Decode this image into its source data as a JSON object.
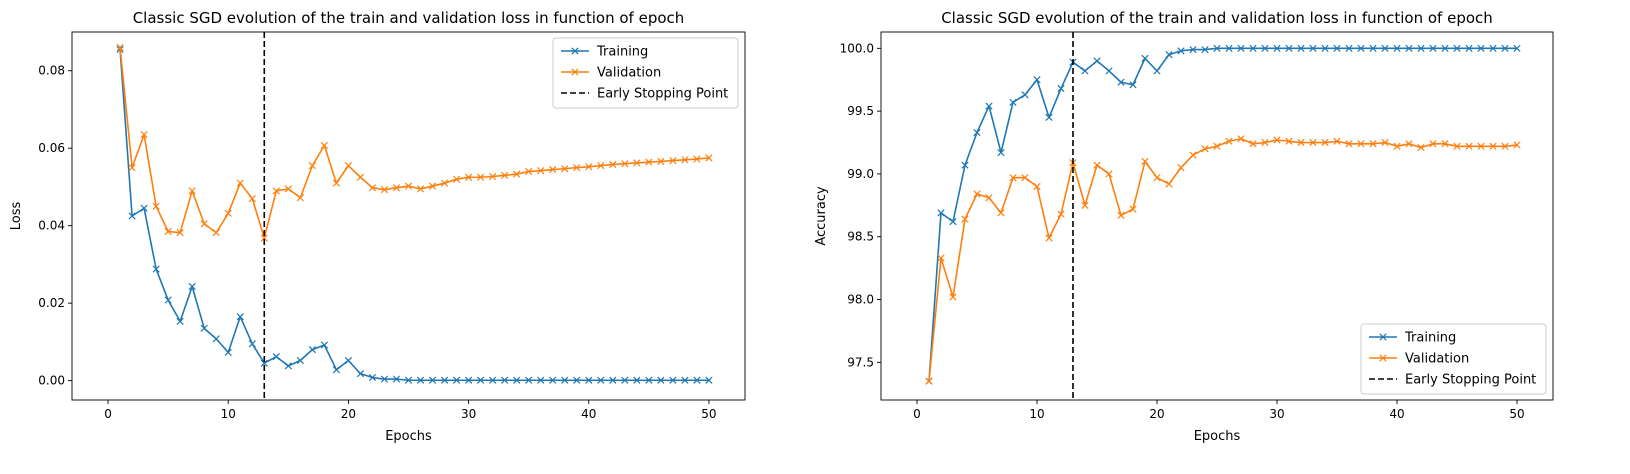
{
  "chart_data": [
    {
      "type": "line",
      "title": "Classic SGD evolution of the train and validation loss in function of epoch",
      "xlabel": "Epochs",
      "ylabel": "Loss",
      "xlim": [
        -3.0,
        53.0
      ],
      "ylim": [
        -0.005,
        0.09
      ],
      "xticks": [
        0,
        10,
        20,
        30,
        40,
        50
      ],
      "yticks": [
        0.0,
        0.02,
        0.04,
        0.06,
        0.08
      ],
      "ytick_labels": [
        "0.00",
        "0.02",
        "0.04",
        "0.06",
        "0.08"
      ],
      "legend_position": "top-right",
      "grid": false,
      "x": [
        1,
        2,
        3,
        4,
        5,
        6,
        7,
        8,
        9,
        10,
        11,
        12,
        13,
        14,
        15,
        16,
        17,
        18,
        19,
        20,
        21,
        22,
        23,
        24,
        25,
        26,
        27,
        28,
        29,
        30,
        31,
        32,
        33,
        34,
        35,
        36,
        37,
        38,
        39,
        40,
        41,
        42,
        43,
        44,
        45,
        46,
        47,
        48,
        49,
        50
      ],
      "series": [
        {
          "name": "Training",
          "color": "#1f77b4",
          "marker": "x",
          "values": [
            0.0855,
            0.0425,
            0.0445,
            0.0288,
            0.0208,
            0.0153,
            0.0243,
            0.0135,
            0.0108,
            0.0073,
            0.0165,
            0.0095,
            0.0045,
            0.0062,
            0.0038,
            0.0052,
            0.008,
            0.0092,
            0.0028,
            0.0052,
            0.0018,
            0.0008,
            0.0004,
            0.0004,
            0.0001,
            0.0001,
            0.0001,
            0.0001,
            0.0001,
            0.0001,
            0.0001,
            0.0001,
            0.0001,
            0.0001,
            0.0001,
            0.0001,
            0.0001,
            0.0001,
            0.0001,
            0.0001,
            0.0001,
            0.0001,
            0.0001,
            0.0001,
            0.0001,
            0.0001,
            0.0001,
            0.0001,
            0.0001,
            0.0001
          ]
        },
        {
          "name": "Validation",
          "color": "#ff7f0e",
          "marker": "x",
          "values": [
            0.086,
            0.055,
            0.0635,
            0.045,
            0.0385,
            0.0382,
            0.049,
            0.0405,
            0.0382,
            0.0432,
            0.051,
            0.047,
            0.0368,
            0.049,
            0.0495,
            0.0472,
            0.0555,
            0.0607,
            0.051,
            0.0555,
            0.0525,
            0.0498,
            0.0493,
            0.0498,
            0.0502,
            0.0495,
            0.0502,
            0.051,
            0.052,
            0.0525,
            0.0525,
            0.0527,
            0.053,
            0.0533,
            0.054,
            0.0542,
            0.0545,
            0.0547,
            0.055,
            0.0552,
            0.0555,
            0.0558,
            0.056,
            0.0562,
            0.0564,
            0.0566,
            0.0568,
            0.057,
            0.0572,
            0.0575
          ]
        }
      ],
      "vline": {
        "name": "Early Stopping Point",
        "x": 13,
        "color": "#000000"
      }
    },
    {
      "type": "line",
      "title": "Classic SGD evolution of the train and validation loss in function of epoch",
      "xlabel": "Epochs",
      "ylabel": "Accuracy",
      "xlim": [
        -3.0,
        53.0
      ],
      "ylim": [
        97.2,
        100.13
      ],
      "xticks": [
        0,
        10,
        20,
        30,
        40,
        50
      ],
      "yticks": [
        97.5,
        98.0,
        98.5,
        99.0,
        99.5,
        100.0
      ],
      "ytick_labels": [
        "97.5",
        "98.0",
        "98.5",
        "99.0",
        "99.5",
        "100.0"
      ],
      "legend_position": "bottom-right",
      "grid": false,
      "x": [
        1,
        2,
        3,
        4,
        5,
        6,
        7,
        8,
        9,
        10,
        11,
        12,
        13,
        14,
        15,
        16,
        17,
        18,
        19,
        20,
        21,
        22,
        23,
        24,
        25,
        26,
        27,
        28,
        29,
        30,
        31,
        32,
        33,
        34,
        35,
        36,
        37,
        38,
        39,
        40,
        41,
        42,
        43,
        44,
        45,
        46,
        47,
        48,
        49,
        50
      ],
      "series": [
        {
          "name": "Training",
          "color": "#1f77b4",
          "marker": "x",
          "values": [
            97.35,
            98.69,
            98.62,
            99.07,
            99.33,
            99.54,
            99.17,
            99.57,
            99.63,
            99.75,
            99.45,
            99.68,
            99.89,
            99.82,
            99.9,
            99.82,
            99.73,
            99.71,
            99.92,
            99.82,
            99.95,
            99.98,
            99.99,
            99.99,
            100.0,
            100.0,
            100.0,
            100.0,
            100.0,
            100.0,
            100.0,
            100.0,
            100.0,
            100.0,
            100.0,
            100.0,
            100.0,
            100.0,
            100.0,
            100.0,
            100.0,
            100.0,
            100.0,
            100.0,
            100.0,
            100.0,
            100.0,
            100.0,
            100.0,
            100.0
          ]
        },
        {
          "name": "Validation",
          "color": "#ff7f0e",
          "marker": "x",
          "values": [
            97.35,
            98.33,
            98.02,
            98.64,
            98.84,
            98.81,
            98.69,
            98.97,
            98.97,
            98.9,
            98.49,
            98.68,
            99.09,
            98.75,
            99.07,
            99.0,
            98.67,
            98.72,
            99.1,
            98.97,
            98.92,
            99.05,
            99.15,
            99.2,
            99.22,
            99.26,
            99.28,
            99.24,
            99.25,
            99.27,
            99.26,
            99.25,
            99.25,
            99.25,
            99.26,
            99.24,
            99.24,
            99.24,
            99.25,
            99.22,
            99.24,
            99.21,
            99.24,
            99.24,
            99.22,
            99.22,
            99.22,
            99.22,
            99.22,
            99.23
          ]
        }
      ],
      "vline": {
        "name": "Early Stopping Point",
        "x": 13,
        "color": "#000000"
      }
    }
  ]
}
